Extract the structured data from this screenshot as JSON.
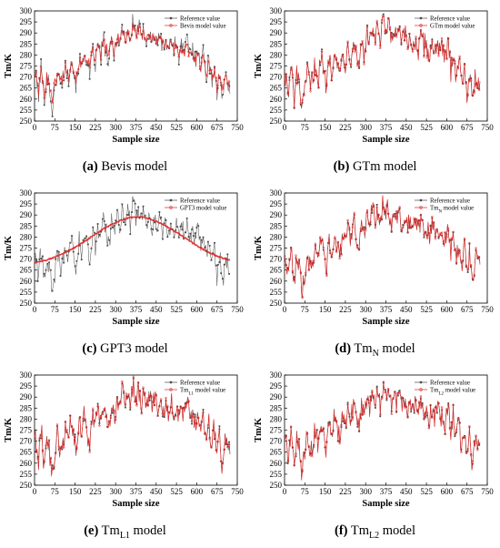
{
  "chart_data": [
    {
      "type": "line",
      "panel_letter": "(a)",
      "caption": "Bevis model",
      "xlabel": "Sample size",
      "ylabel": "Tm/K",
      "xlim": [
        0,
        750
      ],
      "ylim": [
        250,
        300
      ],
      "xticks": [
        0,
        75,
        150,
        225,
        300,
        375,
        450,
        525,
        600,
        675,
        750
      ],
      "yticks": [
        250,
        255,
        260,
        265,
        270,
        275,
        280,
        285,
        290,
        295,
        300
      ],
      "legend_position": "top-right",
      "model_kind": "bevis",
      "series": [
        {
          "name": "Reference value",
          "color": "#4a4a4a",
          "marker": "square"
        },
        {
          "name": "Bevis model value",
          "color": "#e02020",
          "marker": "circle"
        }
      ]
    },
    {
      "type": "line",
      "panel_letter": "(b)",
      "caption": "GTm model",
      "xlabel": "Sample size",
      "ylabel": "Tm/K",
      "xlim": [
        0,
        750
      ],
      "ylim": [
        250,
        300
      ],
      "xticks": [
        0,
        75,
        150,
        225,
        300,
        375,
        450,
        525,
        600,
        675,
        750
      ],
      "yticks": [
        250,
        255,
        260,
        265,
        270,
        275,
        280,
        285,
        290,
        295,
        300
      ],
      "legend_position": "top-right",
      "model_kind": "close",
      "series": [
        {
          "name": "Reference value",
          "color": "#4a4a4a",
          "marker": "square"
        },
        {
          "name": "GTm model value",
          "color": "#e02020",
          "marker": "circle"
        }
      ]
    },
    {
      "type": "line",
      "panel_letter": "(c)",
      "caption": "GPT3 model",
      "xlabel": "Sample size",
      "ylabel": "Tm/K",
      "xlim": [
        0,
        750
      ],
      "ylim": [
        250,
        300
      ],
      "xticks": [
        0,
        75,
        150,
        225,
        300,
        375,
        450,
        525,
        600,
        675,
        750
      ],
      "yticks": [
        250,
        255,
        260,
        265,
        270,
        275,
        280,
        285,
        290,
        295,
        300
      ],
      "legend_position": "top-right",
      "model_kind": "smooth",
      "series": [
        {
          "name": "Reference value",
          "color": "#4a4a4a",
          "marker": "square"
        },
        {
          "name": "GPT3 model value",
          "color": "#e02020",
          "marker": "circle"
        }
      ]
    },
    {
      "type": "line",
      "panel_letter": "(d)",
      "caption": "Tm",
      "caption_sub": "N",
      "caption_suffix": "model",
      "xlabel": "Sample size",
      "ylabel": "Tm/K",
      "xlim": [
        0,
        750
      ],
      "ylim": [
        250,
        300
      ],
      "xticks": [
        0,
        75,
        150,
        225,
        300,
        375,
        450,
        525,
        600,
        675,
        750
      ],
      "yticks": [
        250,
        255,
        260,
        265,
        270,
        275,
        280,
        285,
        290,
        295,
        300
      ],
      "legend_position": "top-right",
      "model_kind": "close",
      "series": [
        {
          "name": "Reference value",
          "color": "#4a4a4a",
          "marker": "square"
        },
        {
          "name": "Tm",
          "name_sub": "N",
          "name_suffix": " model value",
          "color": "#e02020",
          "marker": "circle"
        }
      ]
    },
    {
      "type": "line",
      "panel_letter": "(e)",
      "caption": "Tm",
      "caption_sub": "L1",
      "caption_suffix": "model",
      "xlabel": "Sample size",
      "ylabel": "Tm/K",
      "xlim": [
        0,
        750
      ],
      "ylim": [
        250,
        300
      ],
      "xticks": [
        0,
        75,
        150,
        225,
        300,
        375,
        450,
        525,
        600,
        675,
        750
      ],
      "yticks": [
        250,
        255,
        260,
        265,
        270,
        275,
        280,
        285,
        290,
        295,
        300
      ],
      "legend_position": "top-right",
      "model_kind": "close",
      "series": [
        {
          "name": "Reference value",
          "color": "#4a4a4a",
          "marker": "square"
        },
        {
          "name": "Tm",
          "name_sub": "L1",
          "name_suffix": " model value",
          "color": "#e02020",
          "marker": "circle"
        }
      ]
    },
    {
      "type": "line",
      "panel_letter": "(f)",
      "caption": "Tm",
      "caption_sub": "L2",
      "caption_suffix": "model",
      "xlabel": "Sample size",
      "ylabel": "Tm/K",
      "xlim": [
        0,
        750
      ],
      "ylim": [
        250,
        300
      ],
      "xticks": [
        0,
        75,
        150,
        225,
        300,
        375,
        450,
        525,
        600,
        675,
        750
      ],
      "yticks": [
        250,
        255,
        260,
        265,
        270,
        275,
        280,
        285,
        290,
        295,
        300
      ],
      "legend_position": "top-right",
      "model_kind": "close",
      "series": [
        {
          "name": "Reference value",
          "color": "#4a4a4a",
          "marker": "square"
        },
        {
          "name": "Tm",
          "name_sub": "L2",
          "name_suffix": " model value",
          "color": "#e02020",
          "marker": "circle"
        }
      ]
    }
  ],
  "reference_series": {
    "x": [
      0,
      15,
      25,
      35,
      45,
      55,
      65,
      75,
      85,
      95,
      105,
      115,
      125,
      135,
      145,
      155,
      165,
      175,
      185,
      195,
      205,
      215,
      225,
      235,
      245,
      255,
      265,
      275,
      285,
      295,
      305,
      315,
      325,
      335,
      345,
      355,
      365,
      375,
      385,
      395,
      405,
      415,
      425,
      435,
      445,
      455,
      465,
      475,
      485,
      495,
      505,
      515,
      525,
      535,
      545,
      555,
      565,
      575,
      585,
      595,
      605,
      615,
      625,
      635,
      645,
      655,
      665,
      675,
      685,
      695,
      705,
      715,
      725
    ],
    "y": [
      273,
      262,
      276,
      258,
      271,
      266,
      255,
      263,
      274,
      265,
      270,
      276,
      268,
      281,
      272,
      266,
      279,
      272,
      284,
      275,
      270,
      282,
      276,
      284,
      278,
      288,
      281,
      275,
      287,
      280,
      290,
      284,
      294,
      287,
      292,
      285,
      297,
      289,
      294,
      286,
      292,
      287,
      291,
      285,
      290,
      284,
      289,
      283,
      287,
      281,
      288,
      284,
      286,
      279,
      285,
      281,
      287,
      280,
      283,
      277,
      286,
      273,
      283,
      270,
      279,
      266,
      277,
      262,
      274,
      256,
      271,
      268,
      266
    ]
  }
}
